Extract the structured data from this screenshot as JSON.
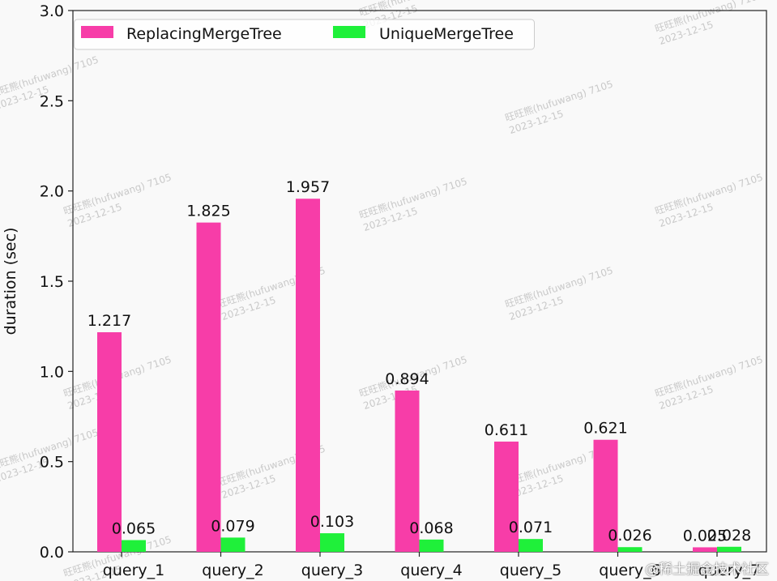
{
  "chart_data": {
    "type": "bar",
    "categories": [
      "query_1",
      "query_2",
      "query_3",
      "query_4",
      "query_5",
      "query_6",
      "query_7"
    ],
    "series": [
      {
        "name": "ReplacingMergeTree",
        "color": "#f73da8",
        "values": [
          1.217,
          1.825,
          1.957,
          0.894,
          0.611,
          0.621,
          0.025
        ],
        "labels": [
          "1.217",
          "1.825",
          "1.957",
          "0.894",
          "0.611",
          "0.621",
          "0.025"
        ]
      },
      {
        "name": "UniqueMergeTree",
        "color": "#1ff03a",
        "values": [
          0.065,
          0.079,
          0.103,
          0.068,
          0.071,
          0.026,
          0.028
        ],
        "labels": [
          "0.065",
          "0.079",
          "0.103",
          "0.068",
          "0.071",
          "0.026",
          "0.028"
        ]
      }
    ],
    "ylabel": "duration (sec)",
    "ylim": [
      0,
      3.0
    ],
    "yticks": [
      "0.0",
      "0.5",
      "1.0",
      "1.5",
      "2.0",
      "2.5",
      "3.0"
    ],
    "legend_position": "top-left",
    "grid": false
  },
  "watermark": {
    "line1": "旺旺熊(hufuwang) 7105",
    "line2": "2023-12-15"
  },
  "corner_mark": "@稀土掘金技术社区"
}
